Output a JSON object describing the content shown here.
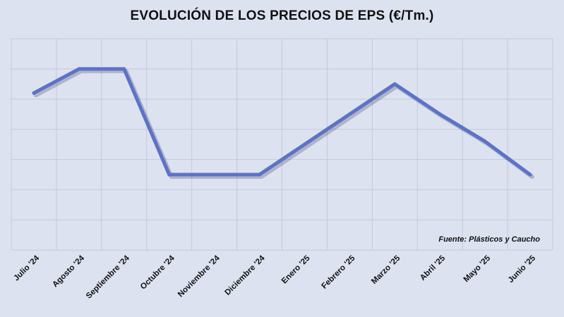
{
  "chart_data": {
    "type": "line",
    "title": "EVOLUCIÓN DE LOS PRECIOS DE EPS (€/Tm.)",
    "source_note": "Fuente: Plásticos y Caucho",
    "categories": [
      "Julio '24",
      "Agosto '24",
      "Septiembre '24",
      "Octubre '24",
      "Noviembre '24",
      "Diciembre '24",
      "Enero '25",
      "Febrero '25",
      "Marzo '25",
      "Abril '25",
      "Mayo '25",
      "Junio '25"
    ],
    "series": [
      {
        "values": [
          5.2,
          6.0,
          6.0,
          2.5,
          2.5,
          2.5,
          3.5,
          4.5,
          5.5,
          4.5,
          3.6,
          2.5
        ]
      }
    ],
    "ylim": [
      0,
      7
    ],
    "y_ticks_labeled": false,
    "grid": true,
    "line_color": "#5b73c8",
    "background_color": "#dde2f1"
  }
}
